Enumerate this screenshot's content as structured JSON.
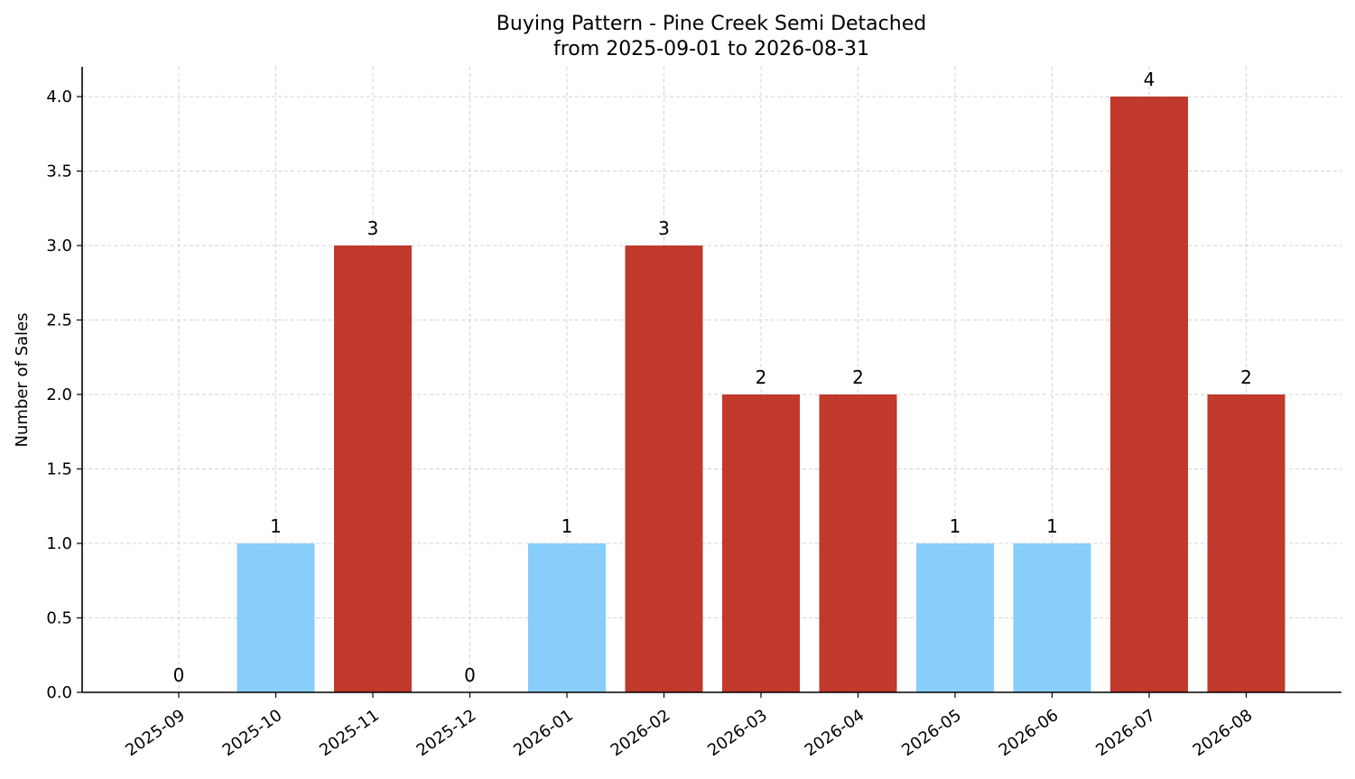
{
  "chart_data": {
    "type": "bar",
    "title": "Buying Pattern - Pine Creek Semi Detached",
    "subtitle": "from 2025-09-01 to 2026-08-31",
    "xlabel": "",
    "ylabel": "Number of Sales",
    "ylim": [
      0,
      4.2
    ],
    "yticks": [
      "0.0",
      "0.5",
      "1.0",
      "1.5",
      "2.0",
      "2.5",
      "3.0",
      "3.5",
      "4.0"
    ],
    "grid": true,
    "categories": [
      "2025-09",
      "2025-10",
      "2025-11",
      "2025-12",
      "2026-01",
      "2026-02",
      "2026-03",
      "2026-04",
      "2026-05",
      "2026-06",
      "2026-07",
      "2026-08"
    ],
    "values": [
      0,
      1,
      3,
      0,
      1,
      3,
      2,
      2,
      1,
      1,
      4,
      2
    ],
    "data_labels": [
      "0",
      "1",
      "3",
      "0",
      "1",
      "3",
      "2",
      "2",
      "1",
      "1",
      "4",
      "2"
    ],
    "bar_colors": [
      "#87cefa",
      "#87cefa",
      "#c0392b",
      "#87cefa",
      "#87cefa",
      "#c0392b",
      "#c0392b",
      "#c0392b",
      "#87cefa",
      "#87cefa",
      "#c0392b",
      "#c0392b"
    ]
  }
}
